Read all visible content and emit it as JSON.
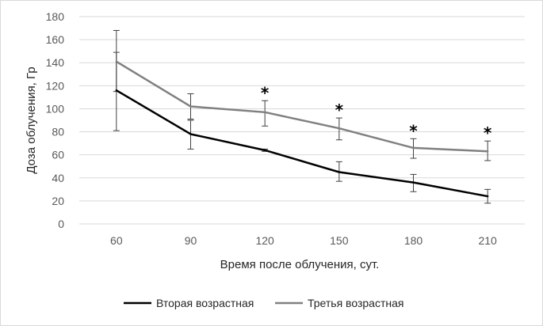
{
  "chart_data": {
    "type": "line",
    "title": "",
    "xlabel": "Время после облучения, сут.",
    "ylabel": "Доза облучения, Гр",
    "ylim": [
      0,
      180
    ],
    "yticks": [
      0,
      20,
      40,
      60,
      80,
      100,
      120,
      140,
      160,
      180
    ],
    "categories": [
      "60",
      "90",
      "120",
      "150",
      "180",
      "210"
    ],
    "grid": "horizontal",
    "legend": "bottom",
    "series": [
      {
        "name": "Вторая возрастная",
        "color": "#000000",
        "values": [
          116,
          78,
          64,
          45,
          36,
          24
        ],
        "err_low": [
          81,
          65,
          63,
          37,
          28,
          18
        ],
        "err_high": [
          149,
          90,
          65,
          54,
          43,
          30
        ]
      },
      {
        "name": "Третья возрастная",
        "color": "#808080",
        "values": [
          141,
          102,
          97,
          83,
          66,
          63
        ],
        "err_low": [
          115,
          91,
          85,
          73,
          57,
          55
        ],
        "err_high": [
          168,
          113,
          107,
          92,
          74,
          72
        ]
      }
    ],
    "significance_marker": "*",
    "significance_at": [
      "120",
      "150",
      "180",
      "210"
    ]
  }
}
